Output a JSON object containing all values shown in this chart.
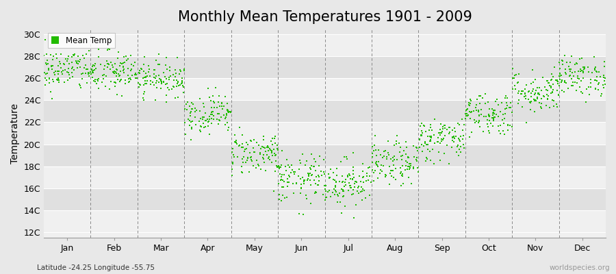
{
  "title": "Monthly Mean Temperatures 1901 - 2009",
  "ylabel": "Temperature",
  "xlabel_labels": [
    "Jan",
    "Feb",
    "Mar",
    "Apr",
    "May",
    "Jun",
    "Jul",
    "Aug",
    "Sep",
    "Oct",
    "Nov",
    "Dec"
  ],
  "ytick_labels": [
    "12C",
    "14C",
    "16C",
    "18C",
    "20C",
    "22C",
    "24C",
    "26C",
    "28C",
    "30C"
  ],
  "ytick_values": [
    12,
    14,
    16,
    18,
    20,
    22,
    24,
    26,
    28,
    30
  ],
  "ylim": [
    11.5,
    30.5
  ],
  "xlim": [
    0,
    12
  ],
  "dot_color": "#22bb00",
  "dot_size": 4,
  "background_color": "#e8e8e8",
  "plot_bg_color": "#e8e8e8",
  "band_light_color": "#f0f0f0",
  "band_dark_color": "#e0e0e0",
  "dashed_line_color": "#888888",
  "legend_label": "Mean Temp",
  "subtitle": "Latitude -24.25 Longitude -55.75",
  "watermark": "worldspecies.org",
  "title_fontsize": 15,
  "label_fontsize": 9,
  "n_years": 109,
  "monthly_means": [
    26.8,
    26.5,
    26.0,
    22.8,
    19.2,
    16.8,
    16.5,
    18.2,
    20.5,
    22.8,
    24.8,
    26.2
  ],
  "monthly_stds": [
    1.0,
    1.0,
    0.8,
    0.9,
    1.0,
    1.1,
    1.1,
    1.0,
    1.0,
    1.0,
    1.0,
    0.9
  ]
}
